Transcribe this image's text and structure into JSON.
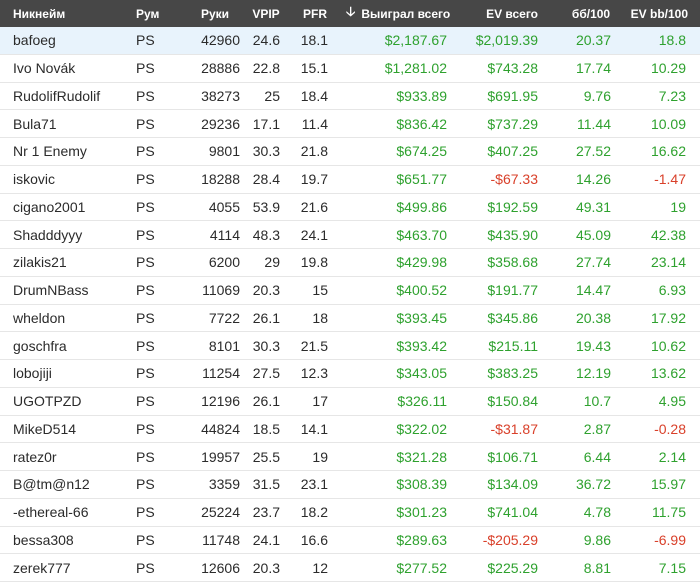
{
  "colors": {
    "header_bg": "#474747",
    "selected_row_bg": "#e8f3fc",
    "positive": "#2ea12e",
    "negative": "#d9402a"
  },
  "header": {
    "nickname": "Никнейм",
    "room": "Рум",
    "hands": "Руки",
    "vpip": "VPIP",
    "pfr": "PFR",
    "sort_icon": "arrow-down-icon",
    "won_total": "Выиграл всего",
    "ev_total": "EV всего",
    "bb100": "бб/100",
    "ev_bb100": "EV bb/100"
  },
  "rows": [
    {
      "name": "bafoeg",
      "room": "PS",
      "hands": "42960",
      "vpip": "24.6",
      "pfr": "18.1",
      "won": "$2,187.67",
      "ev": "$2,019.39",
      "bb": "20.37",
      "evbb": "18.8"
    },
    {
      "name": "Ivo Novák",
      "room": "PS",
      "hands": "28886",
      "vpip": "22.8",
      "pfr": "15.1",
      "won": "$1,281.02",
      "ev": "$743.28",
      "bb": "17.74",
      "evbb": "10.29"
    },
    {
      "name": "RudolifRudolif",
      "room": "PS",
      "hands": "38273",
      "vpip": "25",
      "pfr": "18.4",
      "won": "$933.89",
      "ev": "$691.95",
      "bb": "9.76",
      "evbb": "7.23"
    },
    {
      "name": "Bula71",
      "room": "PS",
      "hands": "29236",
      "vpip": "17.1",
      "pfr": "11.4",
      "won": "$836.42",
      "ev": "$737.29",
      "bb": "11.44",
      "evbb": "10.09"
    },
    {
      "name": "Nr 1 Enemy",
      "room": "PS",
      "hands": "9801",
      "vpip": "30.3",
      "pfr": "21.8",
      "won": "$674.25",
      "ev": "$407.25",
      "bb": "27.52",
      "evbb": "16.62"
    },
    {
      "name": "iskovic",
      "room": "PS",
      "hands": "18288",
      "vpip": "28.4",
      "pfr": "19.7",
      "won": "$651.77",
      "ev": "-$67.33",
      "bb": "14.26",
      "evbb": "-1.47"
    },
    {
      "name": "cigano2001",
      "room": "PS",
      "hands": "4055",
      "vpip": "53.9",
      "pfr": "21.6",
      "won": "$499.86",
      "ev": "$192.59",
      "bb": "49.31",
      "evbb": "19"
    },
    {
      "name": "Shadddyyy",
      "room": "PS",
      "hands": "4114",
      "vpip": "48.3",
      "pfr": "24.1",
      "won": "$463.70",
      "ev": "$435.90",
      "bb": "45.09",
      "evbb": "42.38"
    },
    {
      "name": "zilakis21",
      "room": "PS",
      "hands": "6200",
      "vpip": "29",
      "pfr": "19.8",
      "won": "$429.98",
      "ev": "$358.68",
      "bb": "27.74",
      "evbb": "23.14"
    },
    {
      "name": "DrumNBass",
      "room": "PS",
      "hands": "11069",
      "vpip": "20.3",
      "pfr": "15",
      "won": "$400.52",
      "ev": "$191.77",
      "bb": "14.47",
      "evbb": "6.93"
    },
    {
      "name": "wheldon",
      "room": "PS",
      "hands": "7722",
      "vpip": "26.1",
      "pfr": "18",
      "won": "$393.45",
      "ev": "$345.86",
      "bb": "20.38",
      "evbb": "17.92"
    },
    {
      "name": "goschfra",
      "room": "PS",
      "hands": "8101",
      "vpip": "30.3",
      "pfr": "21.5",
      "won": "$393.42",
      "ev": "$215.11",
      "bb": "19.43",
      "evbb": "10.62"
    },
    {
      "name": "lobojiji",
      "room": "PS",
      "hands": "11254",
      "vpip": "27.5",
      "pfr": "12.3",
      "won": "$343.05",
      "ev": "$383.25",
      "bb": "12.19",
      "evbb": "13.62"
    },
    {
      "name": "UGOTPZD",
      "room": "PS",
      "hands": "12196",
      "vpip": "26.1",
      "pfr": "17",
      "won": "$326.11",
      "ev": "$150.84",
      "bb": "10.7",
      "evbb": "4.95"
    },
    {
      "name": "MikeD514",
      "room": "PS",
      "hands": "44824",
      "vpip": "18.5",
      "pfr": "14.1",
      "won": "$322.02",
      "ev": "-$31.87",
      "bb": "2.87",
      "evbb": "-0.28"
    },
    {
      "name": "ratez0r",
      "room": "PS",
      "hands": "19957",
      "vpip": "25.5",
      "pfr": "19",
      "won": "$321.28",
      "ev": "$106.71",
      "bb": "6.44",
      "evbb": "2.14"
    },
    {
      "name": "B@tm@n12",
      "room": "PS",
      "hands": "3359",
      "vpip": "31.5",
      "pfr": "23.1",
      "won": "$308.39",
      "ev": "$134.09",
      "bb": "36.72",
      "evbb": "15.97"
    },
    {
      "name": "-ethereal-66",
      "room": "PS",
      "hands": "25224",
      "vpip": "23.7",
      "pfr": "18.2",
      "won": "$301.23",
      "ev": "$741.04",
      "bb": "4.78",
      "evbb": "11.75"
    },
    {
      "name": "bessa308",
      "room": "PS",
      "hands": "11748",
      "vpip": "24.1",
      "pfr": "16.6",
      "won": "$289.63",
      "ev": "-$205.29",
      "bb": "9.86",
      "evbb": "-6.99"
    },
    {
      "name": "zerek777",
      "room": "PS",
      "hands": "12606",
      "vpip": "20.3",
      "pfr": "12",
      "won": "$277.52",
      "ev": "$225.29",
      "bb": "8.81",
      "evbb": "7.15"
    }
  ]
}
